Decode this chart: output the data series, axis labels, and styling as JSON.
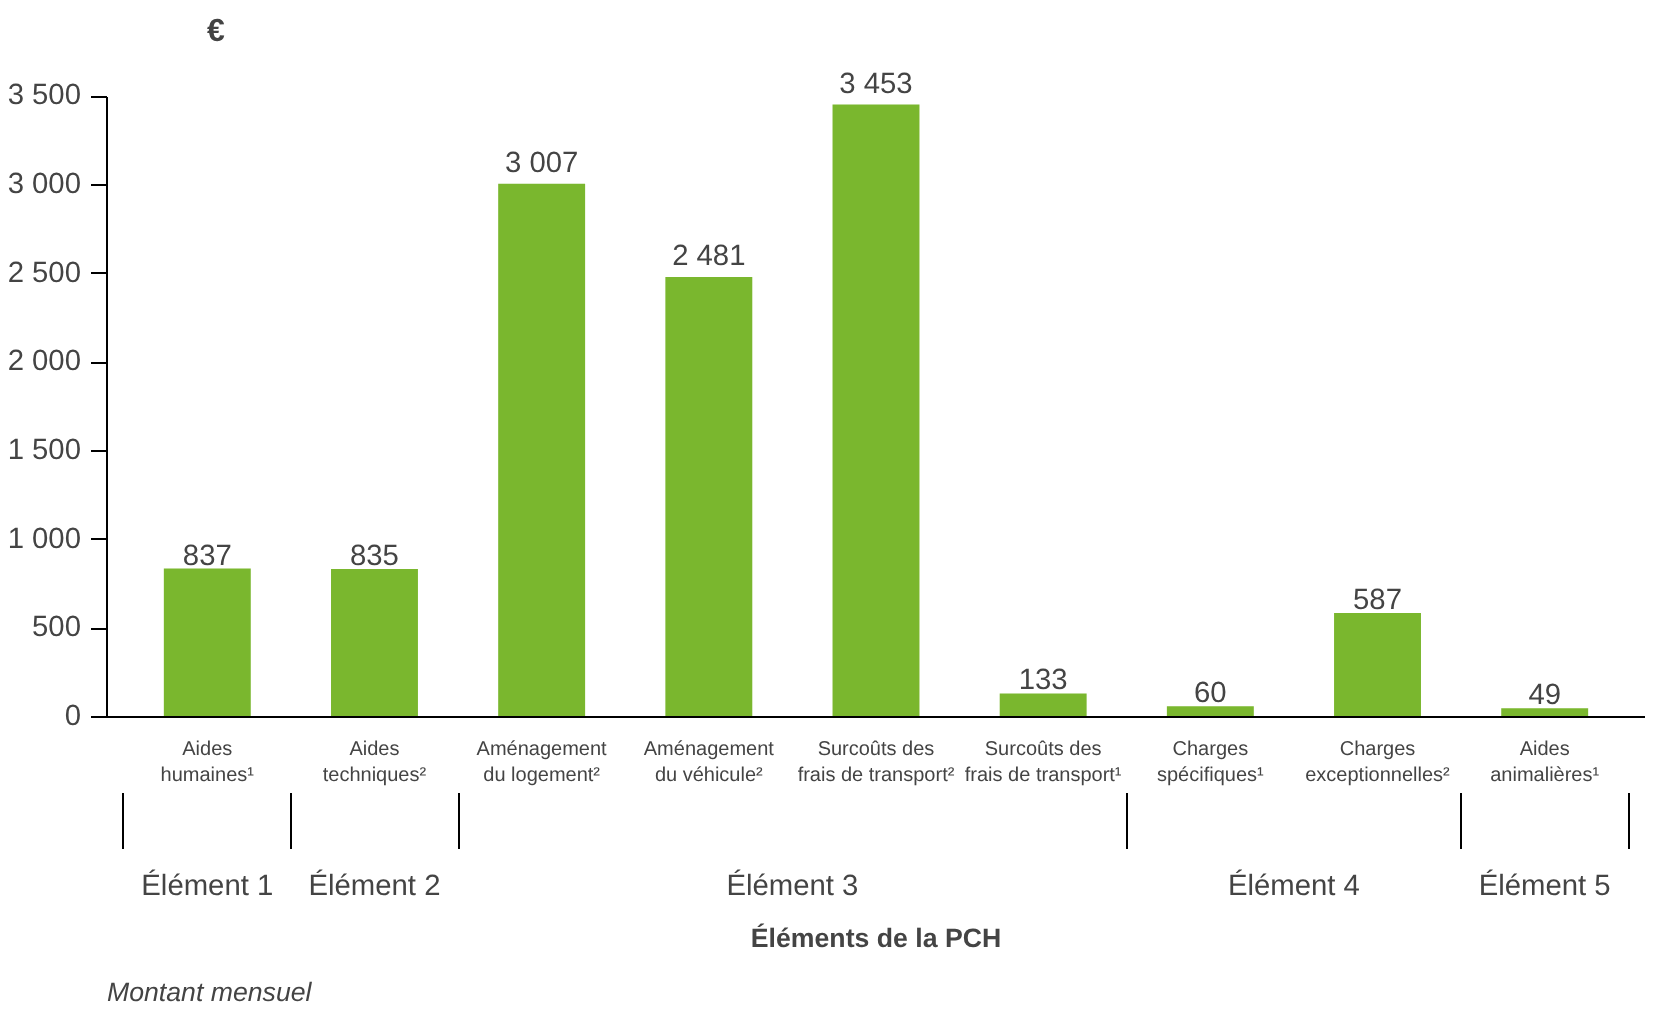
{
  "chart_data": {
    "type": "bar",
    "ylabel": "€",
    "categories": [
      "Aides\nhumaines¹",
      "Aides\ntechniques²",
      "Aménagement\ndu logement²",
      "Aménagement\ndu véhicule²",
      "Surcoûts des\nfrais de transport²",
      "Surcoûts des\nfrais de transport¹",
      "Charges\nspécifiques¹",
      "Charges\nexceptionnelles²",
      "Aides\nanimalières¹"
    ],
    "values": [
      837,
      835,
      3007,
      2481,
      3453,
      133,
      60,
      587,
      49
    ],
    "color": "#7ab72e",
    "data_labels": true,
    "grid": false,
    "ylim": [
      0,
      3500
    ],
    "yticks": [
      0,
      500,
      {
        "value": 1000,
        "label": "1 000"
      },
      {
        "value": 1500,
        "label": "1 500"
      },
      {
        "value": 2000,
        "label": "2 000"
      },
      {
        "value": 2500,
        "label": "2 500"
      },
      {
        "value": 3000,
        "label": "3 000"
      },
      {
        "value": 3500,
        "label": "3 500"
      }
    ],
    "annotations": [
      "Élément 1",
      "Élément 2",
      "Élément 3",
      "Élément 4",
      "Élément 5",
      "Éléments de la PCH",
      "Montant mensuel"
    ]
  }
}
